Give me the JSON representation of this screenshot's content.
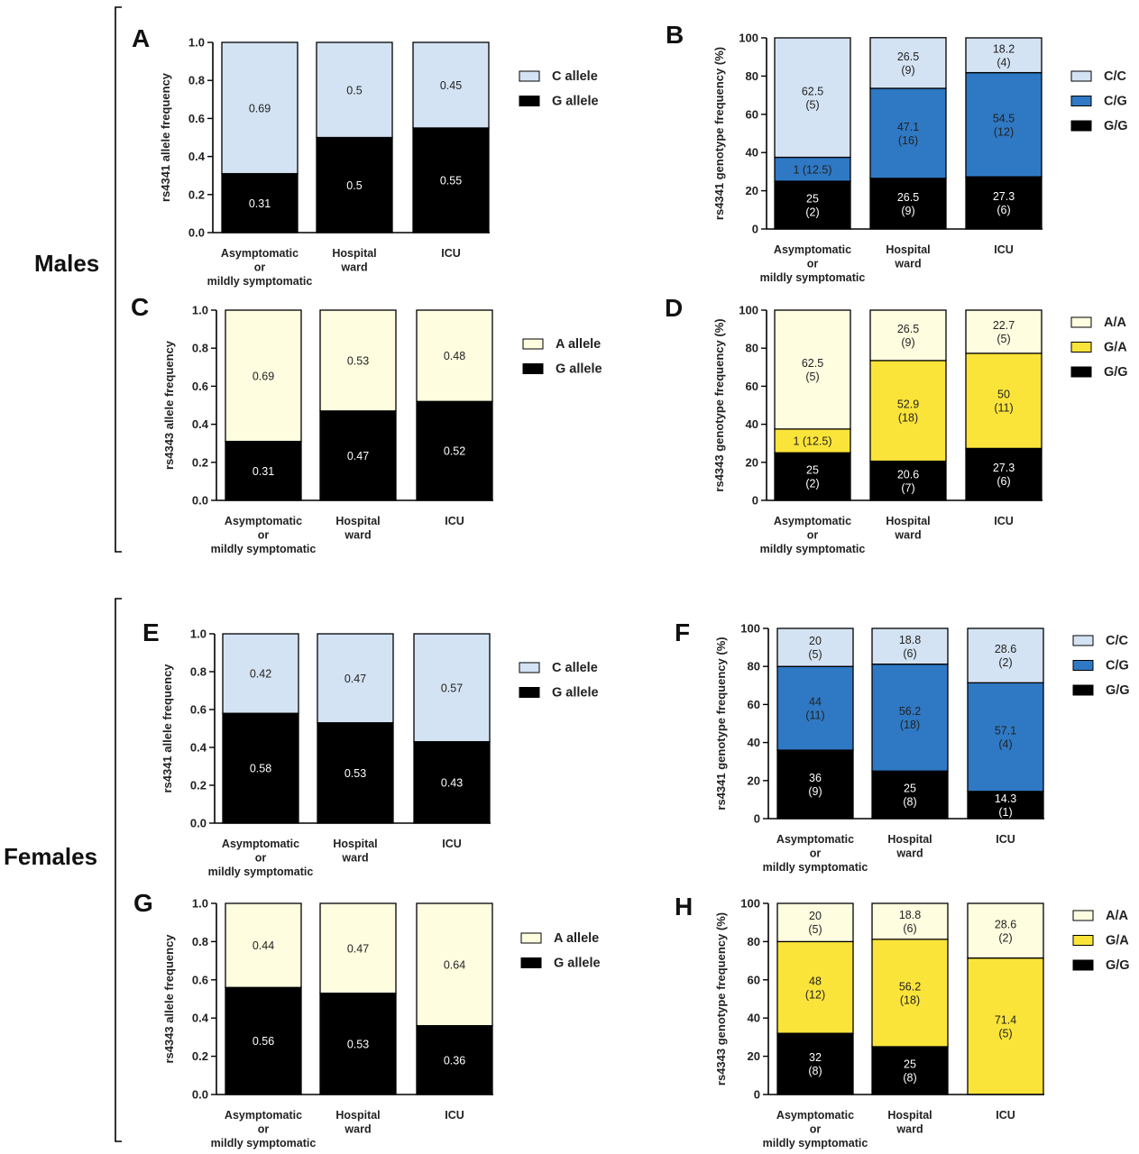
{
  "groups": [
    {
      "label": "Males"
    },
    {
      "label": "Females"
    }
  ],
  "colors": {
    "c_allele": "#d4e3f3",
    "a_allele": "#fefde0",
    "g_allele": "#000000",
    "cg": "#2f79c4",
    "ga": "#fbe43a",
    "axis": "#000000"
  },
  "chart_data": [
    {
      "panel": "A",
      "type": "bar",
      "stacked": true,
      "ylabel": "rs4341 allele frequency",
      "ylim": [
        0,
        1
      ],
      "yticks": [
        "0.0",
        "0.2",
        "0.4",
        "0.6",
        "0.8",
        "1.0"
      ],
      "categories": [
        [
          "Asymptomatic",
          "or",
          "mildly symptomatic"
        ],
        [
          "Hospital",
          "ward"
        ],
        [
          "ICU"
        ]
      ],
      "series": [
        {
          "name": "G allele",
          "color": "#000000",
          "values": [
            0.31,
            0.5,
            0.55
          ],
          "labels": [
            "0.31",
            "0.5",
            "0.55"
          ]
        },
        {
          "name": "C allele",
          "color": "#d4e3f3",
          "values": [
            0.69,
            0.5,
            0.45
          ],
          "labels": [
            "0.69",
            "0.5",
            "0.45"
          ]
        }
      ],
      "legend": [
        "C allele",
        "G allele"
      ]
    },
    {
      "panel": "B",
      "type": "bar",
      "stacked": true,
      "ylabel": "rs4341 genotype frequency (%)",
      "ylim": [
        0,
        100
      ],
      "yticks": [
        "0",
        "20",
        "40",
        "60",
        "80",
        "100"
      ],
      "categories": [
        [
          "Asymptomatic",
          "or",
          "mildly symptomatic"
        ],
        [
          "Hospital",
          "ward"
        ],
        [
          "ICU"
        ]
      ],
      "series": [
        {
          "name": "G/G",
          "color": "#000000",
          "values": [
            25,
            26.5,
            27.3
          ],
          "labels": [
            [
              "25",
              "(2)"
            ],
            [
              "26.5",
              "(9)"
            ],
            [
              "27.3",
              "(6)"
            ]
          ]
        },
        {
          "name": "C/G",
          "color": "#2f79c4",
          "values": [
            12.5,
            47.1,
            54.5
          ],
          "labels": [
            [
              "1 (12.5)"
            ],
            [
              "47.1",
              "(16)"
            ],
            [
              "54.5",
              "(12)"
            ]
          ]
        },
        {
          "name": "C/C",
          "color": "#d4e3f3",
          "values": [
            62.5,
            26.5,
            18.2
          ],
          "labels": [
            [
              "62.5",
              "(5)"
            ],
            [
              "26.5",
              "(9)"
            ],
            [
              "18.2",
              "(4)"
            ]
          ]
        }
      ],
      "legend": [
        "C/C",
        "C/G",
        "G/G"
      ]
    },
    {
      "panel": "C",
      "type": "bar",
      "stacked": true,
      "ylabel": "rs4343 allele frequency",
      "ylim": [
        0,
        1
      ],
      "yticks": [
        "0.0",
        "0.2",
        "0.4",
        "0.6",
        "0.8",
        "1.0"
      ],
      "categories": [
        [
          "Asymptomatic",
          "or",
          "mildly symptomatic"
        ],
        [
          "Hospital",
          "ward"
        ],
        [
          "ICU"
        ]
      ],
      "series": [
        {
          "name": "G allele",
          "color": "#000000",
          "values": [
            0.31,
            0.47,
            0.52
          ],
          "labels": [
            "0.31",
            "0.47",
            "0.52"
          ]
        },
        {
          "name": "A allele",
          "color": "#fefde0",
          "values": [
            0.69,
            0.53,
            0.48
          ],
          "labels": [
            "0.69",
            "0.53",
            "0.48"
          ]
        }
      ],
      "legend": [
        "A allele",
        "G allele"
      ]
    },
    {
      "panel": "D",
      "type": "bar",
      "stacked": true,
      "ylabel": "rs4343 genotype frequency (%)",
      "ylim": [
        0,
        100
      ],
      "yticks": [
        "0",
        "20",
        "40",
        "60",
        "80",
        "100"
      ],
      "categories": [
        [
          "Asymptomatic",
          "or",
          "mildly symptomatic"
        ],
        [
          "Hospital",
          "ward"
        ],
        [
          "ICU"
        ]
      ],
      "series": [
        {
          "name": "G/G",
          "color": "#000000",
          "values": [
            25,
            20.6,
            27.3
          ],
          "labels": [
            [
              "25",
              "(2)"
            ],
            [
              "20.6",
              "(7)"
            ],
            [
              "27.3",
              "(6)"
            ]
          ]
        },
        {
          "name": "G/A",
          "color": "#fbe43a",
          "values": [
            12.5,
            52.9,
            50
          ],
          "labels": [
            [
              "1 (12.5)"
            ],
            [
              "52.9",
              "(18)"
            ],
            [
              "50",
              "(11)"
            ]
          ]
        },
        {
          "name": "A/A",
          "color": "#fefde0",
          "values": [
            62.5,
            26.5,
            22.7
          ],
          "labels": [
            [
              "62.5",
              "(5)"
            ],
            [
              "26.5",
              "(9)"
            ],
            [
              "22.7",
              "(5)"
            ]
          ]
        }
      ],
      "legend": [
        "A/A",
        "G/A",
        "G/G"
      ]
    },
    {
      "panel": "E",
      "type": "bar",
      "stacked": true,
      "ylabel": "rs4341 allele frequency",
      "ylim": [
        0,
        1
      ],
      "yticks": [
        "0.0",
        "0.2",
        "0.4",
        "0.6",
        "0.8",
        "1.0"
      ],
      "categories": [
        [
          "Asymptomatic",
          "or",
          "mildly symptomatic"
        ],
        [
          "Hospital",
          "ward"
        ],
        [
          "ICU"
        ]
      ],
      "series": [
        {
          "name": "G allele",
          "color": "#000000",
          "values": [
            0.58,
            0.53,
            0.43
          ],
          "labels": [
            "0.58",
            "0.53",
            "0.43"
          ]
        },
        {
          "name": "C allele",
          "color": "#d4e3f3",
          "values": [
            0.42,
            0.47,
            0.57
          ],
          "labels": [
            "0.42",
            "0.47",
            "0.57"
          ]
        }
      ],
      "legend": [
        "C allele",
        "G allele"
      ]
    },
    {
      "panel": "F",
      "type": "bar",
      "stacked": true,
      "ylabel": "rs4341 genotype frequency (%)",
      "ylim": [
        0,
        100
      ],
      "yticks": [
        "0",
        "20",
        "40",
        "60",
        "80",
        "100"
      ],
      "categories": [
        [
          "Asymptomatic",
          "or",
          "mildly symptomatic"
        ],
        [
          "Hospital",
          "ward"
        ],
        [
          "ICU"
        ]
      ],
      "series": [
        {
          "name": "G/G",
          "color": "#000000",
          "values": [
            36,
            25,
            14.3
          ],
          "labels": [
            [
              "36",
              "(9)"
            ],
            [
              "25",
              "(8)"
            ],
            [
              "14.3",
              "(1)"
            ]
          ]
        },
        {
          "name": "C/G",
          "color": "#2f79c4",
          "values": [
            44,
            56.2,
            57.1
          ],
          "labels": [
            [
              "44",
              "(11)"
            ],
            [
              "56.2",
              "(18)"
            ],
            [
              "57.1",
              "(4)"
            ]
          ]
        },
        {
          "name": "C/C",
          "color": "#d4e3f3",
          "values": [
            20,
            18.8,
            28.6
          ],
          "labels": [
            [
              "20",
              "(5)"
            ],
            [
              "18.8",
              "(6)"
            ],
            [
              "28.6",
              "(2)"
            ]
          ]
        }
      ],
      "legend": [
        "C/C",
        "C/G",
        "G/G"
      ]
    },
    {
      "panel": "G",
      "type": "bar",
      "stacked": true,
      "ylabel": "rs4343 allele frequency",
      "ylim": [
        0,
        1
      ],
      "yticks": [
        "0.0",
        "0.2",
        "0.4",
        "0.6",
        "0.8",
        "1.0"
      ],
      "categories": [
        [
          "Asymptomatic",
          "or",
          "mildly symptomatic"
        ],
        [
          "Hospital",
          "ward"
        ],
        [
          "ICU"
        ]
      ],
      "series": [
        {
          "name": "G allele",
          "color": "#000000",
          "values": [
            0.56,
            0.53,
            0.36
          ],
          "labels": [
            "0.56",
            "0.53",
            "0.36"
          ]
        },
        {
          "name": "A allele",
          "color": "#fefde0",
          "values": [
            0.44,
            0.47,
            0.64
          ],
          "labels": [
            "0.44",
            "0.47",
            "0.64"
          ]
        }
      ],
      "legend": [
        "A allele",
        "G allele"
      ]
    },
    {
      "panel": "H",
      "type": "bar",
      "stacked": true,
      "ylabel": "rs4343 genotype frequency (%)",
      "ylim": [
        0,
        100
      ],
      "yticks": [
        "0",
        "20",
        "40",
        "60",
        "80",
        "100"
      ],
      "categories": [
        [
          "Asymptomatic",
          "or",
          "mildly symptomatic"
        ],
        [
          "Hospital",
          "ward"
        ],
        [
          "ICU"
        ]
      ],
      "series": [
        {
          "name": "G/G",
          "color": "#000000",
          "values": [
            32,
            25,
            0
          ],
          "labels": [
            [
              "32",
              "(8)"
            ],
            [
              "25",
              "(8)"
            ],
            []
          ]
        },
        {
          "name": "G/A",
          "color": "#fbe43a",
          "values": [
            48,
            56.2,
            71.4
          ],
          "labels": [
            [
              "48",
              "(12)"
            ],
            [
              "56.2",
              "(18)"
            ],
            [
              "71.4",
              "(5)"
            ]
          ]
        },
        {
          "name": "A/A",
          "color": "#fefde0",
          "values": [
            20,
            18.8,
            28.6
          ],
          "labels": [
            [
              "20",
              "(5)"
            ],
            [
              "18.8",
              "(6)"
            ],
            [
              "28.6",
              "(2)"
            ]
          ]
        }
      ],
      "legend": [
        "A/A",
        "G/A",
        "G/G"
      ]
    }
  ]
}
